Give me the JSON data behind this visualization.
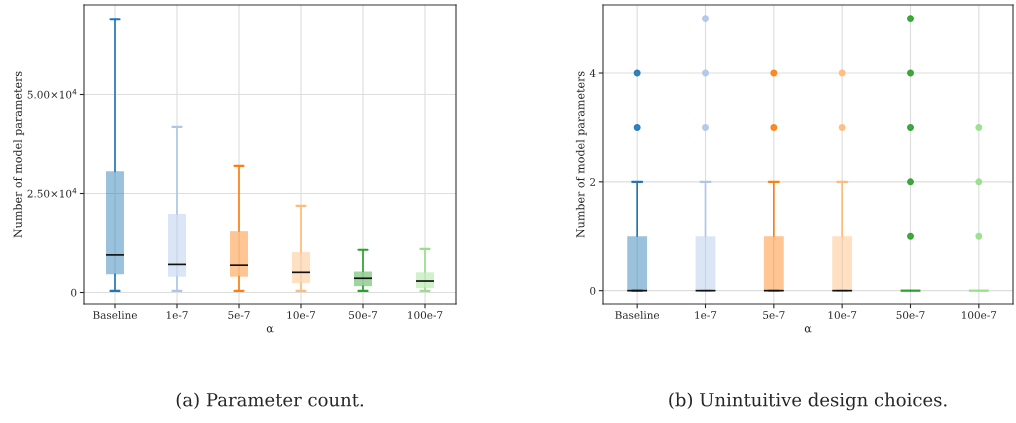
{
  "chart_data": [
    {
      "type": "box",
      "title": "(a) Parameter count.",
      "xlabel": "α",
      "ylabel": "Number of model parameters",
      "categories": [
        "Baseline",
        "1e-7",
        "5e-7",
        "10e-7",
        "50e-7",
        "100e-7"
      ],
      "colors": [
        "#1f77b4",
        "#aec7e8",
        "#ff7f0e",
        "#ffbb78",
        "#2ca02c",
        "#98df8a"
      ],
      "boxes": [
        {
          "low": 400,
          "q1": 4600,
          "median": 9500,
          "q3": 30600,
          "high": 69000
        },
        {
          "low": 400,
          "q1": 4000,
          "median": 7100,
          "q3": 19800,
          "high": 41800
        },
        {
          "low": 400,
          "q1": 4000,
          "median": 6900,
          "q3": 15500,
          "high": 32000
        },
        {
          "low": 400,
          "q1": 2400,
          "median": 5100,
          "q3": 10200,
          "high": 21900
        },
        {
          "low": 400,
          "q1": 1600,
          "median": 3600,
          "q3": 5300,
          "high": 10800
        },
        {
          "low": 400,
          "q1": 1100,
          "median": 2900,
          "q3": 5100,
          "high": 11000
        }
      ],
      "ylim": [
        -2900,
        72600
      ],
      "yticks": [
        0,
        {
          "value": 25000,
          "label": "2.50×10$^{4}$"
        },
        {
          "value": 50000,
          "label": "5.00×10$^{4}$"
        }
      ],
      "grid": true
    },
    {
      "type": "box",
      "title": "(b) Unintuitive design choices.",
      "xlabel": "α",
      "ylabel": "Number of model parameters",
      "categories": [
        "Baseline",
        "1e-7",
        "5e-7",
        "10e-7",
        "50e-7",
        "100e-7"
      ],
      "colors": [
        "#1f77b4",
        "#aec7e8",
        "#ff7f0e",
        "#ffbb78",
        "#2ca02c",
        "#98df8a"
      ],
      "boxes": [
        {
          "low": 0,
          "q1": 0,
          "median": 0,
          "q3": 1,
          "high": 2,
          "outliers": [
            3,
            4
          ]
        },
        {
          "low": 0,
          "q1": 0,
          "median": 0,
          "q3": 1,
          "high": 2,
          "outliers": [
            3,
            4,
            5
          ]
        },
        {
          "low": 0,
          "q1": 0,
          "median": 0,
          "q3": 1,
          "high": 2,
          "outliers": [
            3,
            4
          ]
        },
        {
          "low": 0,
          "q1": 0,
          "median": 0,
          "q3": 1,
          "high": 2,
          "outliers": [
            3,
            4
          ]
        },
        {
          "low": 0,
          "q1": 0,
          "median": 0,
          "q3": 0,
          "high": 0,
          "outliers": [
            1,
            2,
            3,
            4,
            5
          ]
        },
        {
          "low": 0,
          "q1": 0,
          "median": 0,
          "q3": 0,
          "high": 0,
          "outliers": [
            1,
            2,
            3
          ]
        }
      ],
      "ylim": [
        -0.245,
        5.25
      ],
      "yticks": [
        0,
        2,
        4
      ],
      "grid": true
    }
  ]
}
